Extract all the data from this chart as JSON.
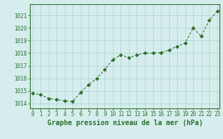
{
  "hours": [
    0,
    1,
    2,
    3,
    4,
    5,
    6,
    7,
    8,
    9,
    10,
    11,
    12,
    13,
    14,
    15,
    16,
    17,
    18,
    19,
    20,
    21,
    22,
    23
  ],
  "pressure": [
    1014.8,
    1014.7,
    1014.4,
    1014.3,
    1014.2,
    1014.15,
    1014.9,
    1015.5,
    1016.0,
    1016.7,
    1017.5,
    1017.85,
    1017.65,
    1017.85,
    1018.0,
    1018.0,
    1018.05,
    1018.25,
    1018.55,
    1018.8,
    1020.0,
    1019.35,
    1020.6,
    1021.35
  ],
  "ylim": [
    1013.6,
    1021.9
  ],
  "yticks": [
    1014,
    1015,
    1016,
    1017,
    1018,
    1019,
    1020,
    1021
  ],
  "line_color": "#2d6e2d",
  "marker": "D",
  "marker_size": 2.5,
  "bg_color": "#d5eeed",
  "grid_color": "#b0d4d4",
  "xlabel": "Graphe pression niveau de la mer (hPa)",
  "xlabel_fontsize": 7,
  "tick_fontsize": 5.5,
  "spine_color": "#2d6e2d"
}
